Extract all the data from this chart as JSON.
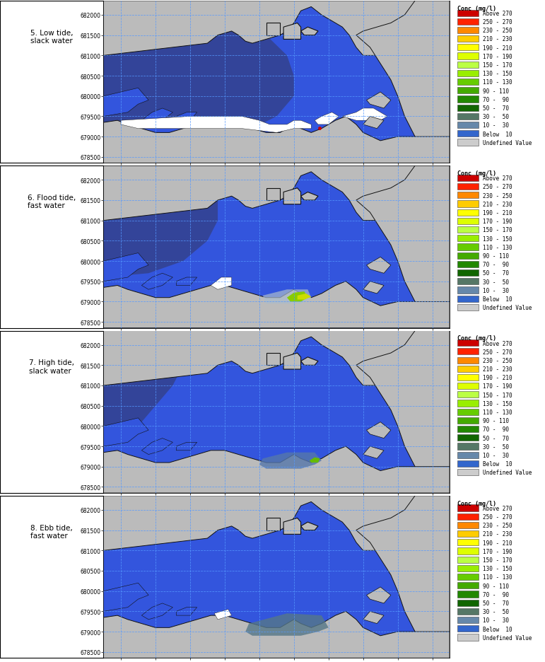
{
  "panels": [
    {
      "label": "5. Low tide,\nslack water"
    },
    {
      "label": "6. Flood tide,\nfast water"
    },
    {
      "label": "7. High tide,\nslack water"
    },
    {
      "label": "8. Ebb tide,\nfast water"
    }
  ],
  "xlim": [
    305500,
    315500
  ],
  "ylim": [
    678350,
    682350
  ],
  "xticks": [
    306000,
    307000,
    308000,
    309000,
    310000,
    311000,
    312000,
    313000,
    314000,
    315000
  ],
  "yticks": [
    678500,
    679000,
    679500,
    680000,
    680500,
    681000,
    681500,
    682000
  ],
  "grid_color": "#5599ff",
  "grid_alpha": 0.9,
  "water_bright": "#3355dd",
  "water_dark": "#334499",
  "land_gray": "#bbbbbb",
  "white_sed": "#ffffff",
  "coast_line": "#111111",
  "legend_title": "Conc (mg/l)",
  "legend_entries": [
    {
      "label": "Above 270",
      "color": "#cc0000"
    },
    {
      "label": "250 - 270",
      "color": "#ff2200"
    },
    {
      "label": "230 - 250",
      "color": "#ff8800"
    },
    {
      "label": "210 - 230",
      "color": "#ffcc00"
    },
    {
      "label": "190 - 210",
      "color": "#ffff00"
    },
    {
      "label": "170 - 190",
      "color": "#ddff00"
    },
    {
      "label": "150 - 170",
      "color": "#bbff44"
    },
    {
      "label": "130 - 150",
      "color": "#99ee00"
    },
    {
      "label": "110 - 130",
      "color": "#66cc00"
    },
    {
      "label": "90 - 110",
      "color": "#44aa00"
    },
    {
      "label": "70 -  90",
      "color": "#228800"
    },
    {
      "label": "50 -  70",
      "color": "#116600"
    },
    {
      "label": "30 -  50",
      "color": "#557766"
    },
    {
      "label": "10 -  30",
      "color": "#6688aa"
    },
    {
      "label": "Below  10",
      "color": "#3366cc"
    },
    {
      "label": "Undefined Value",
      "color": "#cccccc"
    }
  ],
  "outer_bg": "#ffffff",
  "tick_fontsize": 5.5,
  "label_fontsize": 7.5,
  "legend_fontsize": 5.5,
  "legend_title_fontsize": 6.0
}
